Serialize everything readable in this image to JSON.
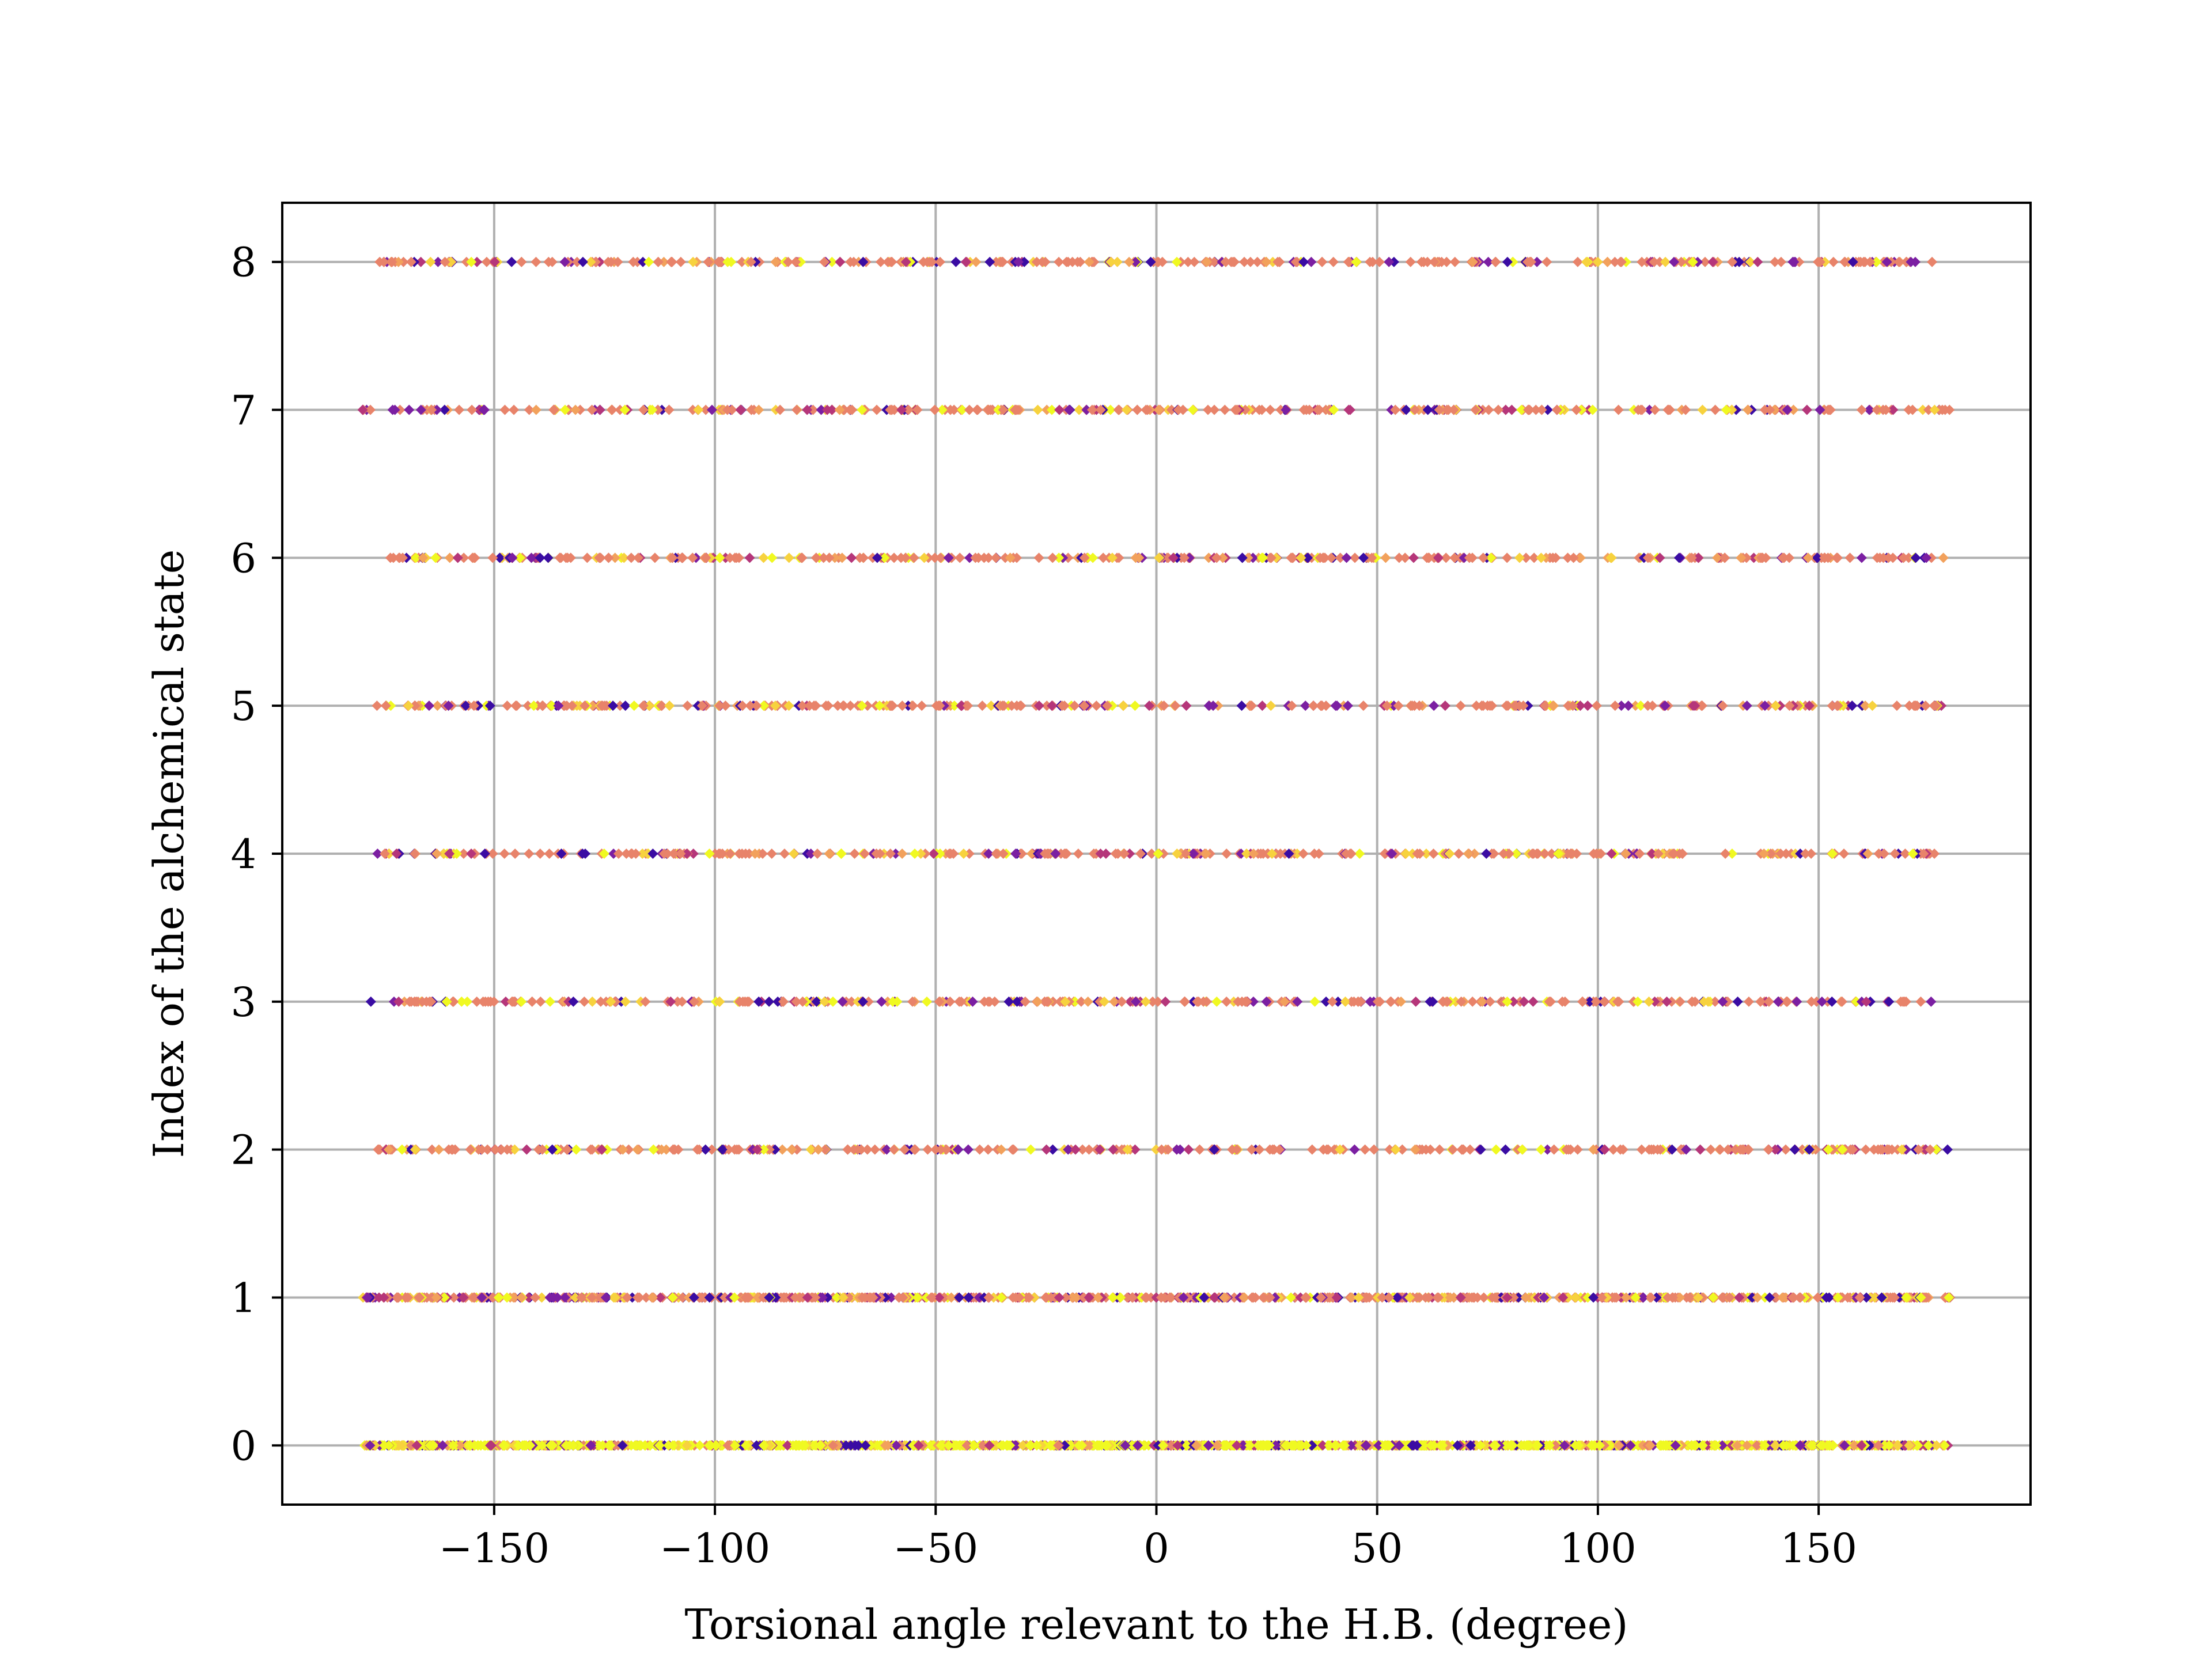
{
  "chart_data": {
    "type": "scatter",
    "title": "",
    "xlabel": "Torsional angle relevant to the H.B. (degree)",
    "ylabel": "Index of the alchemical state",
    "xlim": [
      -198,
      198
    ],
    "ylim": [
      -0.4,
      8.4
    ],
    "xticks": [
      -150,
      -100,
      -50,
      0,
      50,
      100,
      150
    ],
    "xtick_labels": [
      "−150",
      "−100",
      "−50",
      "0",
      "50",
      "100",
      "150"
    ],
    "yticks": [
      0,
      1,
      2,
      3,
      4,
      5,
      6,
      7,
      8
    ],
    "ytick_labels": [
      "0",
      "1",
      "2",
      "3",
      "4",
      "5",
      "6",
      "7",
      "8"
    ],
    "grid": true,
    "marker_colors": [
      "#3a0ca3",
      "#7b1fa2",
      "#b5367a",
      "#e8836a",
      "#f2a15c",
      "#f7d23e",
      "#f0f921"
    ],
    "series": [
      {
        "state": 0,
        "x_range": [
          -180,
          180
        ],
        "density": "very dense",
        "dominant_color": "#f0f921"
      },
      {
        "state": 1,
        "x_range": [
          -180,
          180
        ],
        "density": "dense",
        "dominant_color": "#e8836a"
      },
      {
        "state": 2,
        "x_range": [
          -178,
          180
        ],
        "density": "medium",
        "dominant_color": "#e8836a"
      },
      {
        "state": 3,
        "x_range": [
          -178,
          177
        ],
        "density": "medium",
        "dominant_color": "#e8836a"
      },
      {
        "state": 4,
        "x_range": [
          -178,
          180
        ],
        "density": "medium",
        "dominant_color": "#e8836a"
      },
      {
        "state": 5,
        "x_range": [
          -178,
          180
        ],
        "density": "medium",
        "dominant_color": "#e8836a"
      },
      {
        "state": 6,
        "x_range": [
          -175,
          180
        ],
        "density": "medium",
        "dominant_color": "#e8836a"
      },
      {
        "state": 7,
        "x_range": [
          -180,
          180
        ],
        "density": "medium",
        "dominant_color": "#e8836a"
      },
      {
        "state": 8,
        "x_range": [
          -177,
          180
        ],
        "density": "medium",
        "dominant_color": "#e8836a"
      }
    ]
  }
}
